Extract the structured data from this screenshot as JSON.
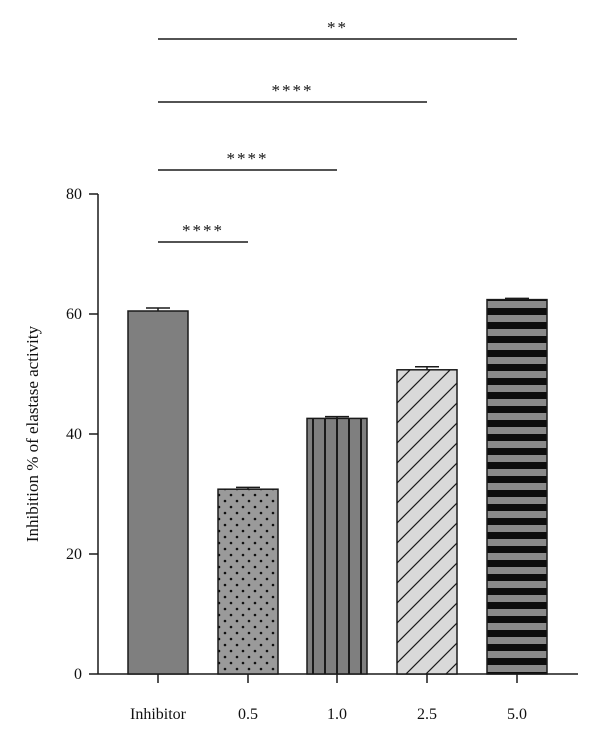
{
  "chart_data": {
    "type": "bar",
    "title": "",
    "xlabel": "",
    "ylabel": "Inhibition % of elastase activity",
    "ylim": [
      0,
      80
    ],
    "yticks": [
      0,
      20,
      40,
      60,
      80
    ],
    "grid": false,
    "categories": [
      "Inhibitor",
      "0.5",
      "1.0",
      "2.5",
      "5.0"
    ],
    "values": [
      60.5,
      30.8,
      42.6,
      50.7,
      62.4
    ],
    "errors": [
      0.5,
      0.3,
      0.3,
      0.5,
      0.2
    ],
    "patterns": [
      "solid-gray",
      "dots",
      "vertical-stripes",
      "diagonal-hatch",
      "horizontal-stripes"
    ],
    "significance": [
      {
        "from": 0,
        "to": 1,
        "label": "****"
      },
      {
        "from": 0,
        "to": 2,
        "label": "****"
      },
      {
        "from": 0,
        "to": 3,
        "label": "****"
      },
      {
        "from": 0,
        "to": 4,
        "label": "**"
      }
    ],
    "colors": {
      "bar_gray": "#7f7f7f",
      "bar_light": "#d9d9d9",
      "stroke": "#1a1a1a"
    }
  }
}
